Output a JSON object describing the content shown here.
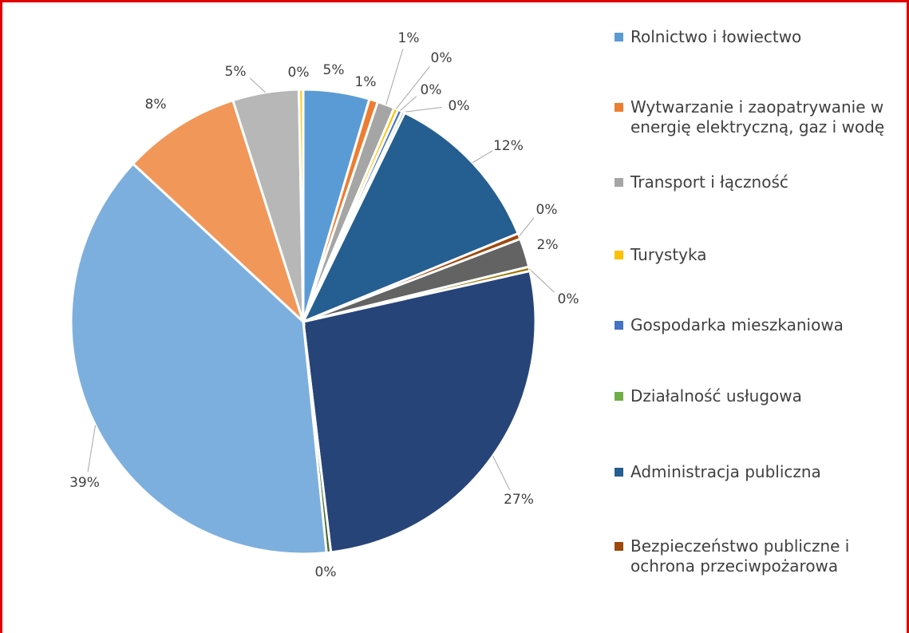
{
  "chart_data": {
    "type": "pie",
    "categories": [
      "Rolnictwo i łowiectwo",
      "Wytwarzanie i zaopatrywanie w energię elektryczną, gaz i wodę",
      "Transport i łączność",
      "Turystyka",
      "Gospodarka mieszkaniowa",
      "Działalność usługowa",
      "Administracja publiczna",
      "Bezpieczeństwo publiczne i ochrona przeciwpożarowa",
      null,
      null,
      null,
      null,
      null,
      null,
      null,
      null
    ],
    "values": [
      4.6,
      0.6,
      1.2,
      0.3,
      0.3,
      0.2,
      11.6,
      0.4,
      2.0,
      0.3,
      26.6,
      0.3,
      38.5,
      8.2,
      4.6,
      0.3
    ],
    "value_labels": [
      "5%",
      "1%",
      "1%",
      "0%",
      "0%",
      "0%",
      "12%",
      "0%",
      "2%",
      "0%",
      "27%",
      "0%",
      "39%",
      "8%",
      "5%",
      "0%"
    ],
    "colors": [
      "#5b9bd5",
      "#ed7d31",
      "#a5a5a5",
      "#ffc000",
      "#4472c4",
      "#70ad47",
      "#255e91",
      "#9e480e",
      "#636363",
      "#997300",
      "#264478",
      "#43682b",
      "#7cafdd",
      "#f1975a",
      "#b7b7b7",
      "#ffcd33"
    ]
  }
}
